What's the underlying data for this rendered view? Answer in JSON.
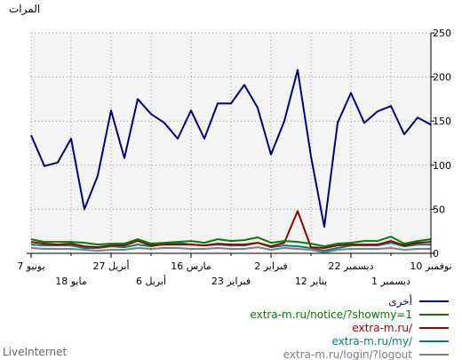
{
  "chart_data": {
    "type": "line",
    "ylabel": "المرات",
    "ylim": [
      0,
      250
    ],
    "y_ticks": [
      0,
      50,
      100,
      150,
      200,
      250
    ],
    "grid": true,
    "legend_position": "bottom-right",
    "x_labels_row1": [
      "10 نوفمبر",
      "22 ديسمبر",
      "2 فبراير",
      "16 مارس",
      "27 أبريل",
      "7 يونيو"
    ],
    "x_labels_row2": [
      "1 ديسمبر",
      "12 يناير",
      "23 فبراير",
      "6 أبريل",
      "18 مايو"
    ],
    "series": [
      {
        "name": "أخرى",
        "color": "#000080",
        "values": [
          146,
          154,
          135,
          167,
          161,
          148,
          182,
          148,
          30,
          110,
          208,
          150,
          112,
          165,
          191,
          170,
          170,
          130,
          162,
          130,
          148,
          158,
          175,
          108,
          162,
          88,
          50,
          130,
          103,
          99,
          134
        ]
      },
      {
        "name": "extra-m.ru/notice/?showmy=1",
        "color": "#008000",
        "values": [
          16,
          14,
          11,
          19,
          14,
          14,
          12,
          11,
          8,
          11,
          13,
          14,
          12,
          18,
          15,
          14,
          16,
          12,
          14,
          13,
          12,
          11,
          16,
          11,
          11,
          10,
          12,
          13,
          13,
          13,
          16
        ]
      },
      {
        "name": "extra-m.ru/",
        "color": "#990000",
        "values": [
          13,
          12,
          9,
          14,
          10,
          10,
          10,
          9,
          6,
          7,
          48,
          12,
          8,
          12,
          10,
          10,
          11,
          9,
          10,
          10,
          10,
          9,
          14,
          9,
          9,
          7,
          8,
          11,
          10,
          11,
          13
        ]
      },
      {
        "name": "extra-m.ru/my/",
        "color": "#008080",
        "values": [
          10,
          10,
          8,
          12,
          9,
          9,
          9,
          6,
          3,
          6,
          8,
          9,
          7,
          12,
          9,
          9,
          10,
          9,
          10,
          12,
          11,
          8,
          10,
          7,
          8,
          6,
          6,
          9,
          9,
          9,
          10
        ]
      },
      {
        "name": "extra-m.ru/login/?logout",
        "color": "#808080",
        "values": [
          5,
          5,
          4,
          6,
          5,
          5,
          5,
          4,
          1,
          4,
          5,
          6,
          4,
          7,
          5,
          5,
          6,
          5,
          5,
          6,
          6,
          5,
          6,
          4,
          4,
          3,
          4,
          5,
          5,
          5,
          6
        ]
      }
    ]
  },
  "footer": {
    "brand": "LiveInternet"
  }
}
